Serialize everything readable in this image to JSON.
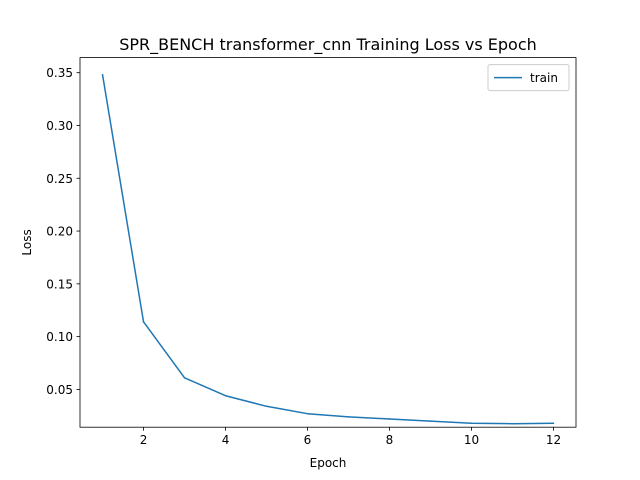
{
  "chart_data": {
    "type": "line",
    "title": "SPR_BENCH transformer_cnn Training Loss vs Epoch",
    "xlabel": "Epoch",
    "ylabel": "Loss",
    "x": [
      1,
      2,
      3,
      4,
      5,
      6,
      7,
      8,
      9,
      10,
      11,
      12
    ],
    "series": [
      {
        "name": "train",
        "color": "#1f77b4",
        "values": [
          0.348,
          0.114,
          0.061,
          0.044,
          0.034,
          0.027,
          0.024,
          0.022,
          0.02,
          0.018,
          0.0175,
          0.018
        ]
      }
    ],
    "xlim": [
      0.45,
      12.55
    ],
    "ylim": [
      0.0142,
      0.3643
    ],
    "xticks": [
      2,
      4,
      6,
      8,
      10,
      12
    ],
    "xtick_labels": [
      "2",
      "4",
      "6",
      "8",
      "10",
      "12"
    ],
    "yticks": [
      0.05,
      0.1,
      0.15,
      0.2,
      0.25,
      0.3,
      0.35
    ],
    "ytick_labels": [
      "0.05",
      "0.10",
      "0.15",
      "0.20",
      "0.25",
      "0.30",
      "0.35"
    ],
    "grid": false,
    "legend_position": "top-right"
  }
}
